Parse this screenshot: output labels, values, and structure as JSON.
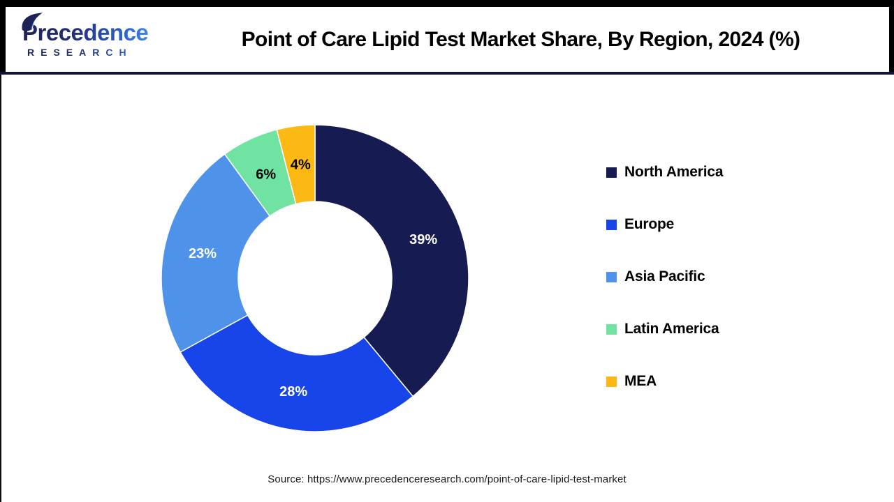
{
  "header": {
    "logo": {
      "brand": "Precedence",
      "sub": "RESEARCH"
    },
    "title": "Point of Care Lipid Test Market Share, By Region, 2024 (%)"
  },
  "chart_data": {
    "type": "pie",
    "subtype": "donut",
    "title": "Point of Care Lipid Test Market Share, By Region, 2024 (%)",
    "categories": [
      "North America",
      "Europe",
      "Asia Pacific",
      "Latin America",
      "MEA"
    ],
    "values": [
      39,
      28,
      23,
      6,
      4
    ],
    "unit": "%",
    "colors": [
      "#161c52",
      "#1745e9",
      "#4e93e9",
      "#70e3a2",
      "#fcb813"
    ],
    "label_colors": [
      "#ffffff",
      "#ffffff",
      "#ffffff",
      "#000000",
      "#000000"
    ],
    "start_angle_deg": 0,
    "direction": "clockwise",
    "inner_radius_ratio": 0.5,
    "label_radius_ratio": 0.75,
    "grid": false,
    "legend_position": "right"
  },
  "footer": {
    "source": "Source: https://www.precedenceresearch.com/point-of-care-lipid-test-market"
  }
}
